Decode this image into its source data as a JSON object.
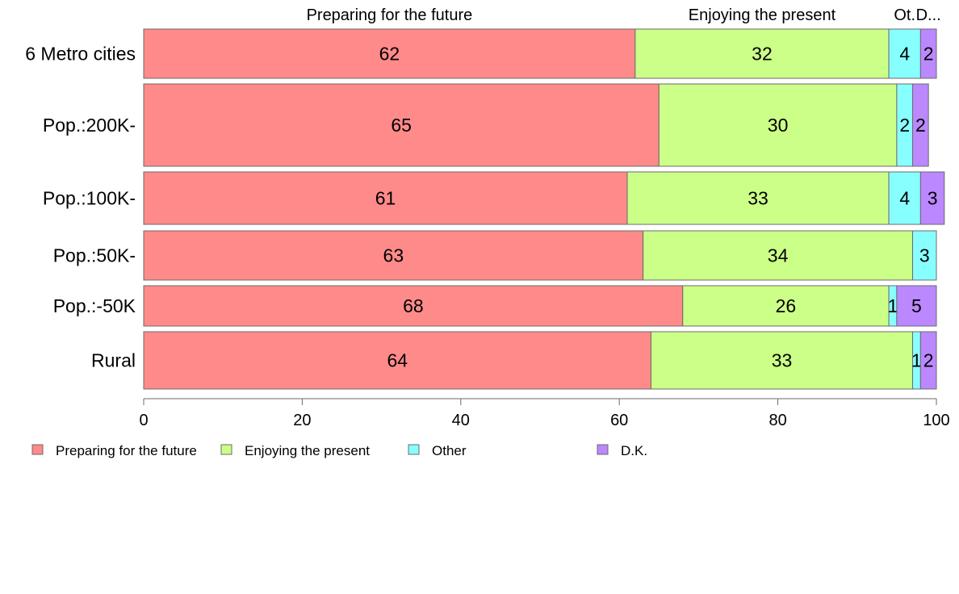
{
  "chart_data": {
    "type": "bar",
    "orientation": "horizontal",
    "stacked": true,
    "categories": [
      "6 Metro cities",
      "Pop.:200K-",
      "Pop.:100K-",
      "Pop.:50K-",
      "Pop.:-50K",
      "Rural"
    ],
    "series": [
      {
        "name": "Preparing for the future",
        "color": "#ff8a8a",
        "values": [
          62,
          65,
          61,
          63,
          68,
          64
        ]
      },
      {
        "name": "Enjoying the present",
        "color": "#ccff88",
        "values": [
          32,
          30,
          33,
          34,
          26,
          33
        ]
      },
      {
        "name": "Other",
        "color": "#88ffff",
        "values": [
          4,
          2,
          4,
          3,
          1,
          1
        ]
      },
      {
        "name": "D.K.",
        "color": "#bb88ff",
        "values": [
          2,
          2,
          3,
          0,
          5,
          2
        ]
      }
    ],
    "column_labels": [
      "Preparing for the future",
      "Enjoying the present",
      "Ot.",
      "D..."
    ],
    "xlim": [
      0,
      100
    ],
    "xticks": [
      0,
      20,
      40,
      60,
      80,
      100
    ],
    "legend_position": "bottom-left",
    "grid": false
  }
}
